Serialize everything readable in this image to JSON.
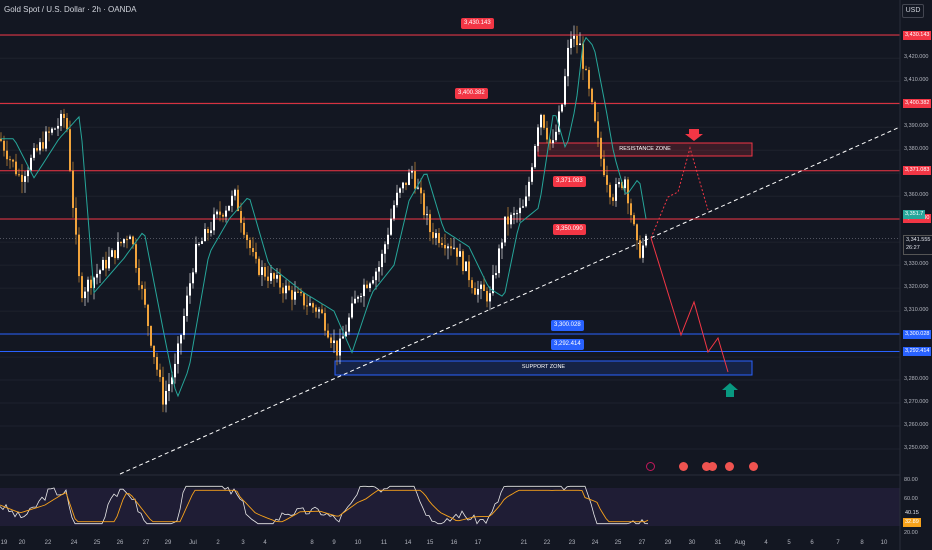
{
  "header": {
    "title": "Gold Spot / U.S. Dollar · 2h · OANDA",
    "currency": "USD"
  },
  "price_labels": {
    "high": "3,430.143",
    "r2": "3,400.382",
    "r1": "3,371.083",
    "pivot": "3,350.090",
    "s1": "3,300.028",
    "s2": "3,292.414"
  },
  "zones": {
    "resistance": "RESISTANCE ZONE",
    "support": "SUPPORT ZONE"
  },
  "price_axis": {
    "ticks": [
      "3,430.143",
      "3,420.000",
      "3,410.000",
      "3,400.382",
      "3,390.000",
      "3,380.000",
      "3,371.083",
      "3,360.000",
      "3,350.090",
      "3,341.555",
      "3,330.000",
      "3,320.000",
      "3,310.000",
      "3,300.028",
      "3,292.414",
      "3,280.000",
      "3,270.000",
      "3,260.000",
      "3,250.000"
    ],
    "current_price": "3,341.555",
    "countdown": "26:27",
    "ma_value": "3,351.7"
  },
  "time_axis": [
    "19",
    "20",
    "22",
    "24",
    "25",
    "26",
    "27",
    "29",
    "Jul",
    "2",
    "3",
    "4",
    "8",
    "9",
    "10",
    "11",
    "14",
    "15",
    "16",
    "17",
    "21",
    "22",
    "23",
    "24",
    "25",
    "27",
    "29",
    "30",
    "31",
    "Aug",
    "4",
    "5",
    "6",
    "7",
    "8",
    "10"
  ],
  "rsi": {
    "levels": [
      "80.00",
      "60.00",
      "20.00"
    ],
    "value": "40.15",
    "ma_value": "32.89"
  },
  "colors": {
    "background": "#131722",
    "resistance_line": "#f23645",
    "support_line": "#2962ff",
    "candle": "#f0a33c",
    "candle_up": "#ffffff",
    "ma": "#26a69a",
    "rsi_line": "#e8e8e8",
    "rsi_ma": "#f7a21b",
    "arrow_up": "#089981",
    "arrow_down": "#f23645"
  }
}
